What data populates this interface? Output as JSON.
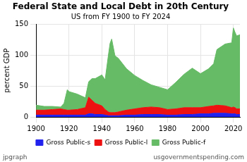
{
  "chart_data": {
    "type": "area",
    "title": "Federal State and Local Debt in 20th Century",
    "subtitle": "US from FY 1900 to FY 2024",
    "y_label": "percent GDP",
    "annotations": [
      "usgovernmentspending.com",
      "jpgraph"
    ],
    "stacked": true,
    "grid": true,
    "legend": "bottom",
    "x": [
      1900,
      1905,
      1910,
      1915,
      1917,
      1919,
      1920,
      1925,
      1930,
      1932,
      1934,
      1936,
      1940,
      1942,
      1944,
      1945,
      1946,
      1948,
      1950,
      1955,
      1960,
      1965,
      1970,
      1975,
      1980,
      1985,
      1990,
      1995,
      2000,
      2005,
      2008,
      2010,
      2015,
      2019,
      2020,
      2021,
      2022,
      2024
    ],
    "xlim": [
      1900,
      2024
    ],
    "xticks": [
      1900,
      1920,
      1940,
      1960,
      1980,
      2000,
      2020
    ],
    "ylim": [
      0,
      150
    ],
    "yticks": [
      0,
      50,
      100,
      150
    ],
    "series": [
      {
        "name": "Gross Public-s",
        "color": "#2222ee",
        "values": [
          3,
          3,
          3,
          3,
          3,
          3,
          3,
          3,
          3,
          5,
          5,
          4,
          4,
          3,
          2,
          2,
          2,
          2,
          2,
          3,
          3,
          4,
          4,
          4,
          3,
          3,
          4,
          4,
          5,
          5,
          6,
          6,
          6,
          5,
          5,
          5,
          4,
          4
        ]
      },
      {
        "name": "Gross Public-l",
        "color": "#ee1111",
        "values": [
          8,
          8,
          9,
          10,
          9,
          8,
          8,
          9,
          12,
          27,
          22,
          18,
          14,
          9,
          6,
          5,
          5,
          5,
          6,
          8,
          10,
          11,
          12,
          11,
          9,
          10,
          11,
          11,
          10,
          12,
          12,
          13,
          12,
          10,
          11,
          10,
          9,
          9
        ]
      },
      {
        "name": "Gross Public-f",
        "color": "#66bb66",
        "values": [
          8,
          6,
          5,
          3,
          10,
          33,
          30,
          25,
          16,
          25,
          35,
          40,
          50,
          48,
          92,
          112,
          119,
          92,
          87,
          67,
          54,
          44,
          36,
          33,
          32,
          43,
          54,
          64,
          55,
          61,
          68,
          90,
          100,
          105,
          128,
          122,
          118,
          120
        ]
      }
    ]
  }
}
